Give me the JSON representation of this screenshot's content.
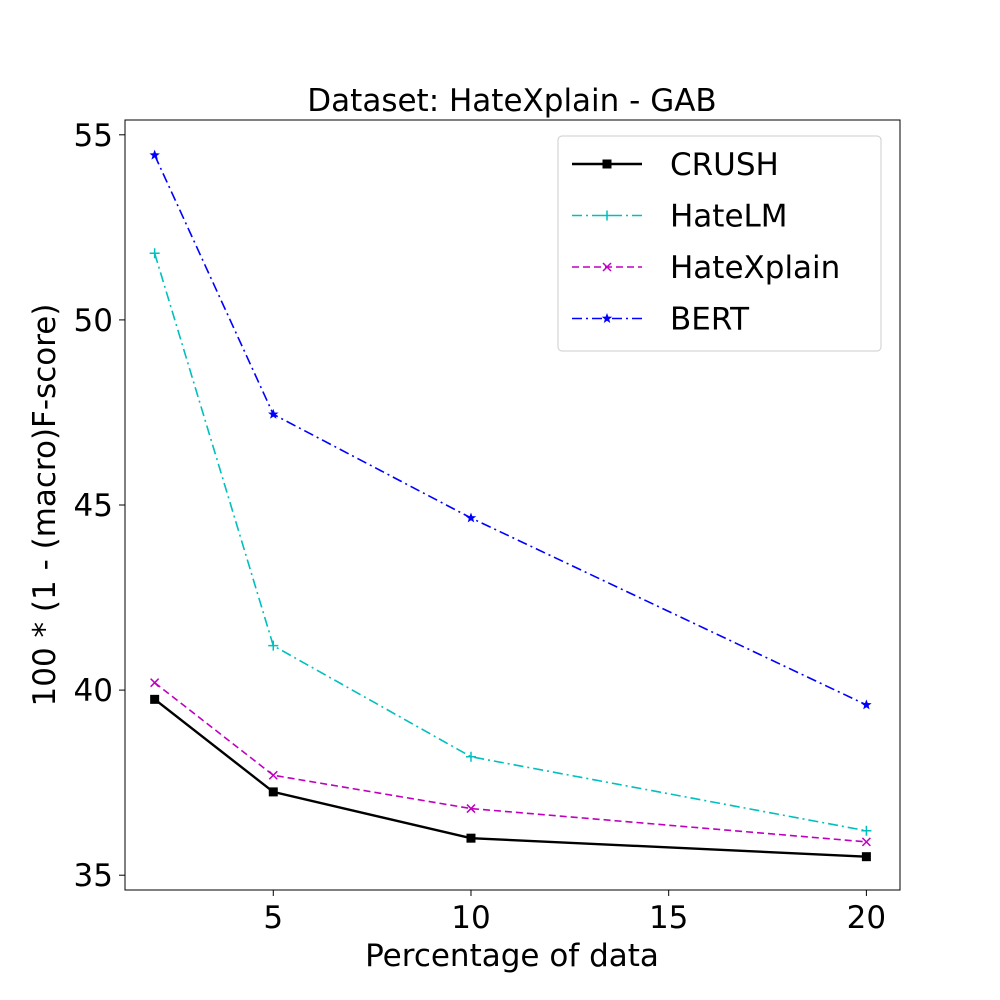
{
  "chart_data": {
    "type": "line",
    "title": "Dataset: HateXplain - GAB",
    "xlabel": "Percentage of data",
    "ylabel": "100 * (1 - (macro)F-score)",
    "x": [
      2,
      5,
      10,
      20
    ],
    "xlim": [
      1.25,
      20.85
    ],
    "ylim": [
      34.6,
      55.4
    ],
    "xticks": [
      5,
      10,
      15,
      20
    ],
    "yticks": [
      35,
      40,
      45,
      50,
      55
    ],
    "grid": false,
    "legend_position": "top-right",
    "series": [
      {
        "name": "CRUSH",
        "values": [
          39.75,
          37.25,
          36.0,
          35.5
        ],
        "color": "#000000",
        "dash": "solid",
        "marker": "square"
      },
      {
        "name": "HateLM",
        "values": [
          51.8,
          41.2,
          38.2,
          36.2
        ],
        "color": "#00bfbf",
        "dash": "dashdot",
        "marker": "plus"
      },
      {
        "name": "HateXplain",
        "values": [
          40.2,
          37.7,
          36.8,
          35.9
        ],
        "color": "#bf00bf",
        "dash": "dashed",
        "marker": "x"
      },
      {
        "name": "BERT",
        "values": [
          54.45,
          47.45,
          44.65,
          39.6
        ],
        "color": "#0000ff",
        "dash": "dashdot",
        "marker": "star"
      }
    ]
  }
}
